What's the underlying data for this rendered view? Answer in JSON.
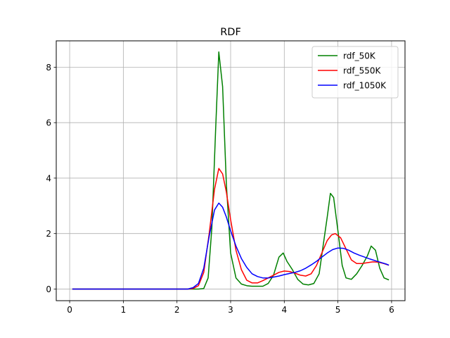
{
  "chart_data": {
    "type": "line",
    "title": "RDF",
    "xlabel": "",
    "ylabel": "",
    "xlim": [
      -0.25,
      6.25
    ],
    "ylim": [
      -0.42,
      8.95
    ],
    "xticks": [
      0,
      1,
      2,
      3,
      4,
      5,
      6
    ],
    "yticks": [
      0,
      2,
      4,
      6,
      8
    ],
    "xtick_labels": [
      "0",
      "1",
      "2",
      "3",
      "4",
      "5",
      "6"
    ],
    "ytick_labels": [
      "0",
      "2",
      "4",
      "6",
      "8"
    ],
    "grid": true,
    "legend_position": "top-right",
    "series": [
      {
        "name": "rdf_50K",
        "color": "#008000",
        "x": [
          0.05,
          0.5,
          1.0,
          1.5,
          2.0,
          2.3,
          2.4,
          2.5,
          2.58,
          2.65,
          2.72,
          2.78,
          2.85,
          2.92,
          3.0,
          3.1,
          3.2,
          3.3,
          3.4,
          3.5,
          3.6,
          3.7,
          3.8,
          3.9,
          3.98,
          4.05,
          4.15,
          4.25,
          4.35,
          4.45,
          4.55,
          4.65,
          4.72,
          4.8,
          4.86,
          4.92,
          5.0,
          5.08,
          5.15,
          5.25,
          5.35,
          5.45,
          5.55,
          5.62,
          5.7,
          5.78,
          5.86,
          5.95
        ],
        "y": [
          0,
          0,
          0,
          0,
          0,
          0,
          0.0,
          0.02,
          0.4,
          2.2,
          5.7,
          8.55,
          7.3,
          3.8,
          1.3,
          0.4,
          0.18,
          0.12,
          0.1,
          0.1,
          0.1,
          0.2,
          0.5,
          1.15,
          1.3,
          1.0,
          0.7,
          0.35,
          0.18,
          0.15,
          0.2,
          0.55,
          1.5,
          2.6,
          3.45,
          3.3,
          2.1,
          0.85,
          0.4,
          0.35,
          0.55,
          0.85,
          1.2,
          1.55,
          1.4,
          0.75,
          0.4,
          0.33
        ]
      },
      {
        "name": "rdf_550K",
        "color": "#ff0000",
        "x": [
          0.05,
          0.5,
          1.0,
          1.5,
          2.0,
          2.2,
          2.3,
          2.4,
          2.5,
          2.6,
          2.7,
          2.78,
          2.85,
          2.92,
          3.0,
          3.1,
          3.2,
          3.3,
          3.4,
          3.5,
          3.6,
          3.7,
          3.8,
          3.9,
          4.0,
          4.1,
          4.2,
          4.3,
          4.4,
          4.5,
          4.6,
          4.7,
          4.8,
          4.88,
          4.95,
          5.05,
          5.15,
          5.25,
          5.35,
          5.45,
          5.55,
          5.65,
          5.75,
          5.85,
          5.95
        ],
        "y": [
          0,
          0,
          0,
          0,
          0,
          0,
          0.02,
          0.12,
          0.6,
          2.0,
          3.6,
          4.35,
          4.15,
          3.5,
          2.5,
          1.4,
          0.7,
          0.32,
          0.22,
          0.22,
          0.3,
          0.4,
          0.5,
          0.6,
          0.65,
          0.63,
          0.57,
          0.5,
          0.47,
          0.55,
          0.85,
          1.3,
          1.75,
          1.95,
          2.0,
          1.85,
          1.45,
          1.05,
          0.92,
          0.92,
          0.95,
          0.98,
          0.97,
          0.92,
          0.86
        ]
      },
      {
        "name": "rdf_1050K",
        "color": "#0000ff",
        "x": [
          0.05,
          0.5,
          1.0,
          1.5,
          2.0,
          2.2,
          2.3,
          2.4,
          2.5,
          2.6,
          2.7,
          2.78,
          2.85,
          2.92,
          3.0,
          3.1,
          3.2,
          3.3,
          3.4,
          3.5,
          3.6,
          3.7,
          3.8,
          3.9,
          4.0,
          4.1,
          4.2,
          4.3,
          4.4,
          4.5,
          4.6,
          4.7,
          4.8,
          4.9,
          5.0,
          5.1,
          5.2,
          5.3,
          5.4,
          5.5,
          5.6,
          5.7,
          5.8,
          5.9,
          5.95
        ],
        "y": [
          0,
          0,
          0,
          0,
          0,
          0,
          0.05,
          0.2,
          0.75,
          1.9,
          2.85,
          3.1,
          2.95,
          2.6,
          2.1,
          1.55,
          1.1,
          0.78,
          0.55,
          0.45,
          0.4,
          0.4,
          0.43,
          0.47,
          0.52,
          0.56,
          0.6,
          0.66,
          0.75,
          0.87,
          1.0,
          1.15,
          1.3,
          1.42,
          1.48,
          1.47,
          1.4,
          1.3,
          1.22,
          1.15,
          1.08,
          1.02,
          0.96,
          0.9,
          0.86
        ]
      }
    ]
  }
}
